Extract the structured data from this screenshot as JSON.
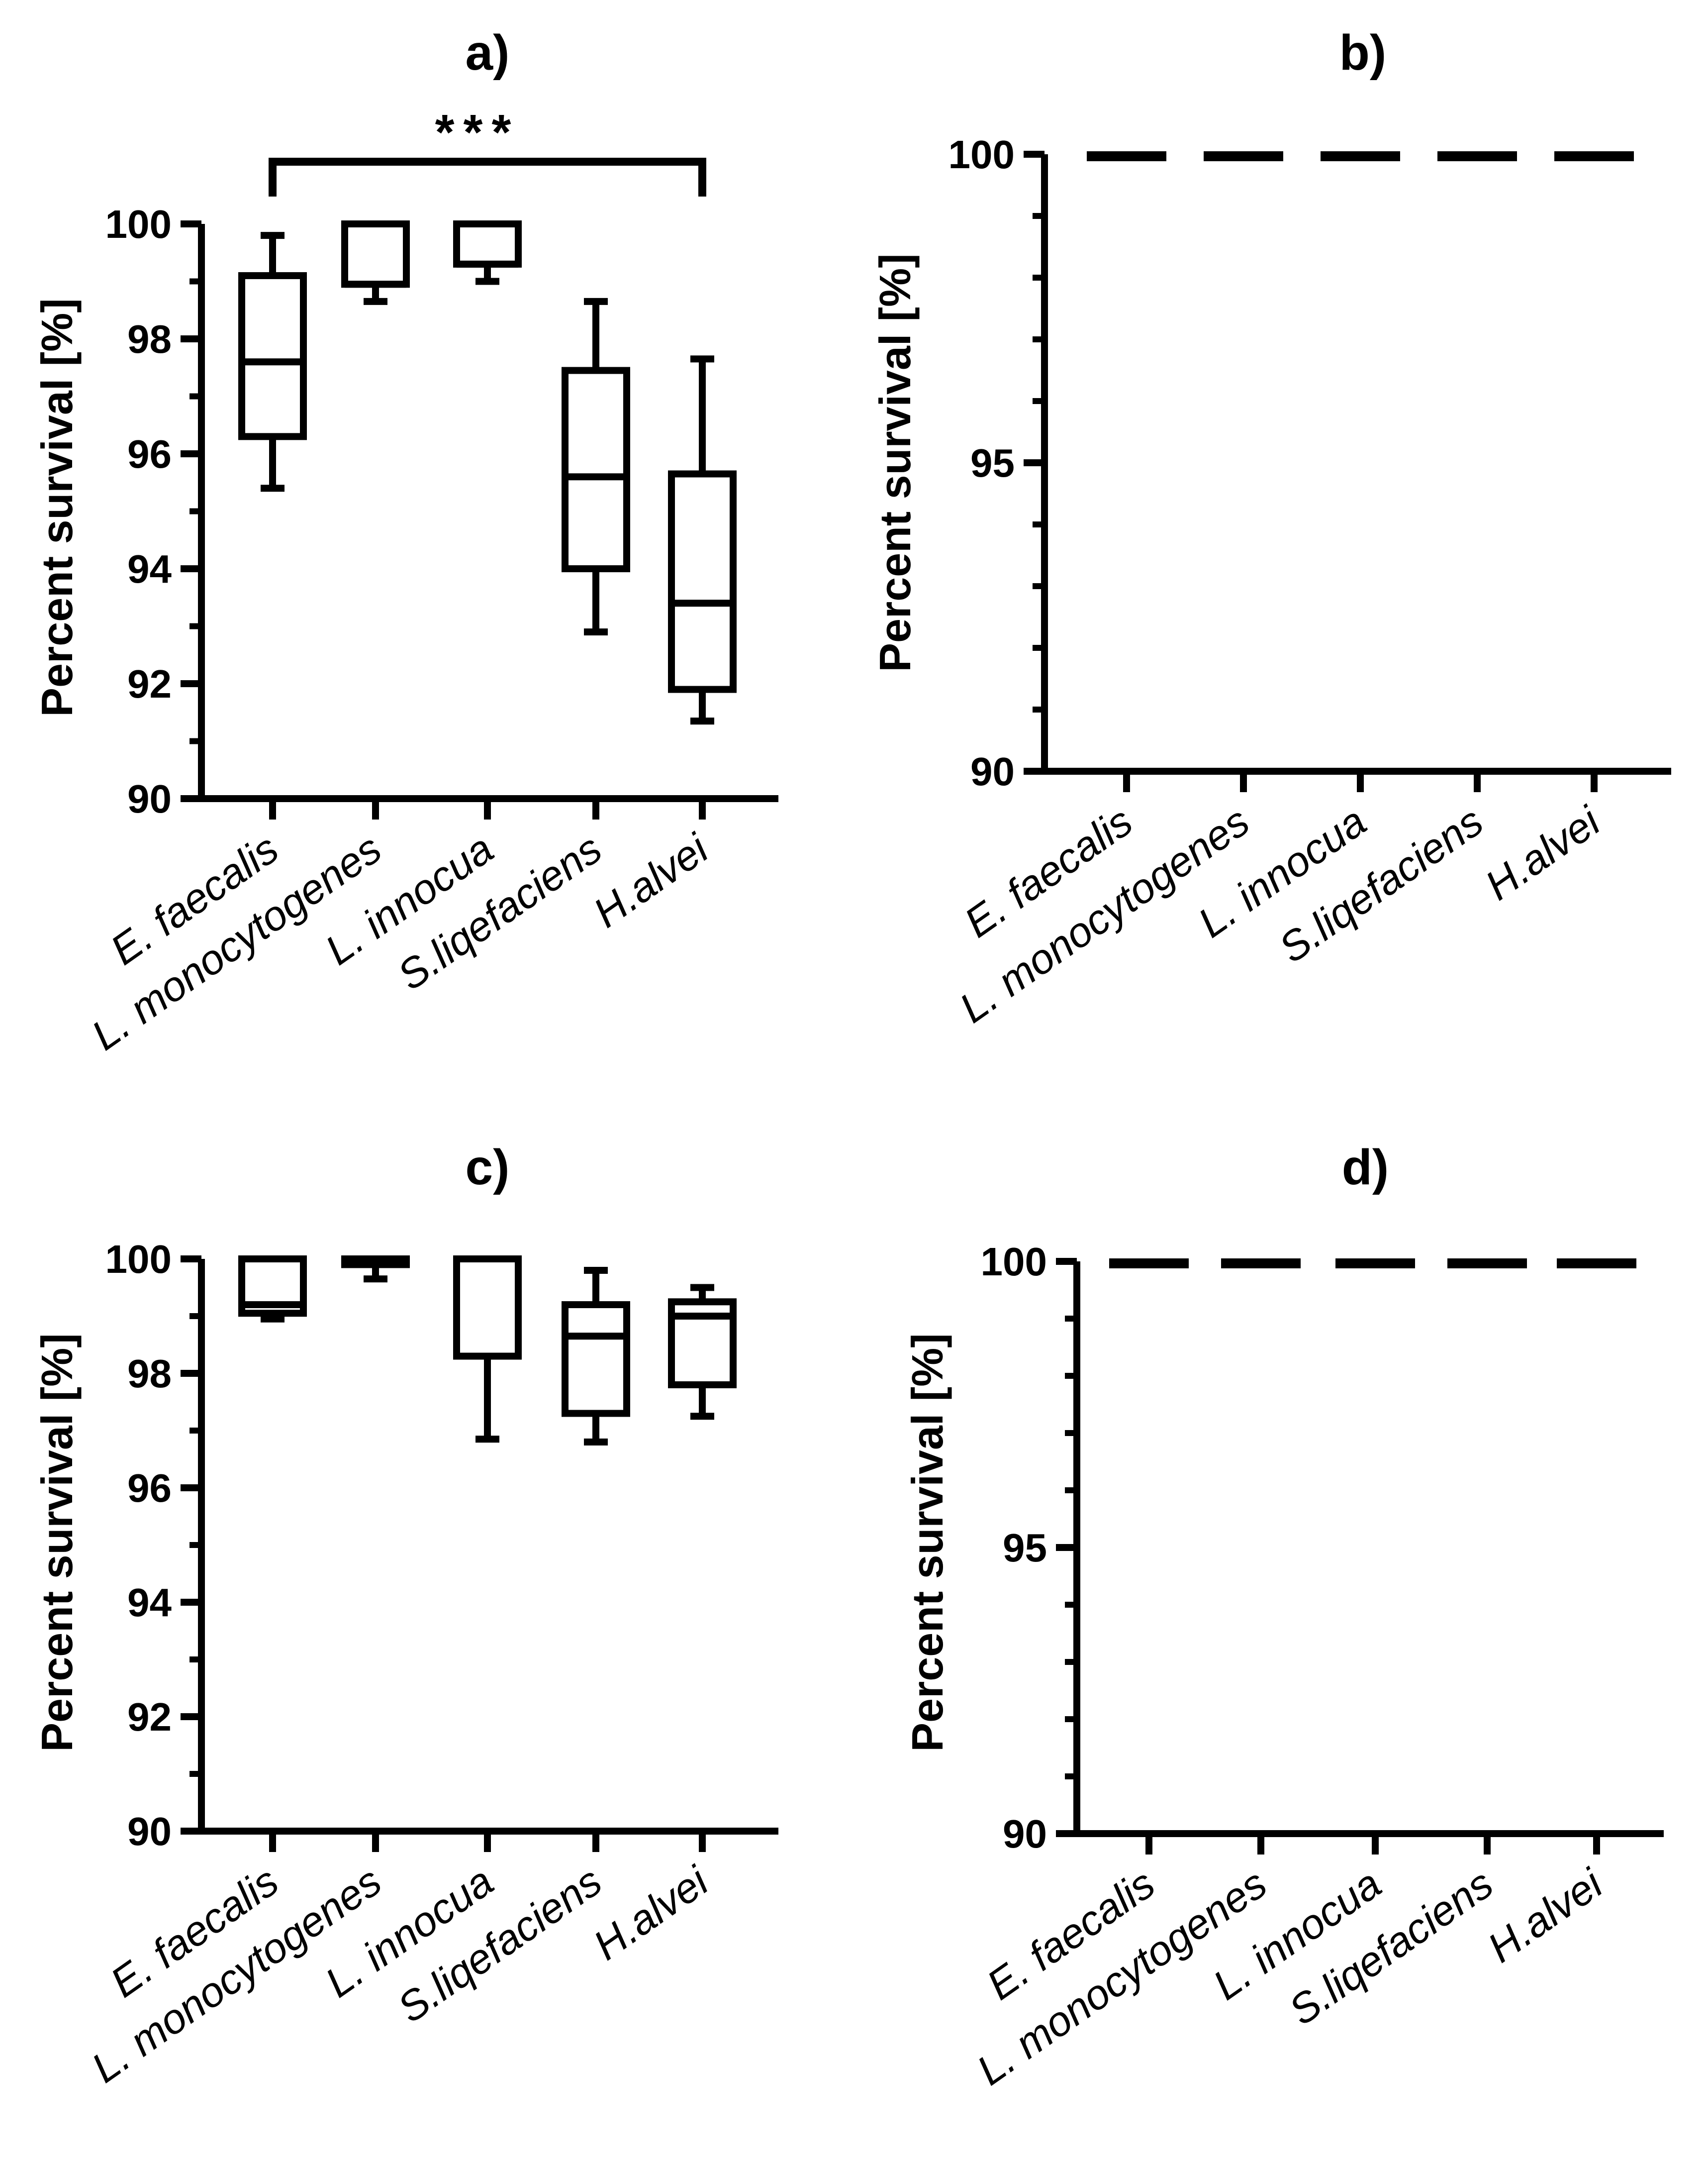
{
  "chart_data": [
    {
      "panel": "a)",
      "type": "box",
      "title": "a)",
      "xlabel": "",
      "ylabel": "Percent survival [%]",
      "ylim": [
        90,
        100
      ],
      "yticks": [
        90,
        92,
        94,
        96,
        98,
        100
      ],
      "categories": [
        "E. faecalis",
        "L. monocytogenes",
        "L. innocua",
        "S.liqefaciens",
        "H.alvei"
      ],
      "boxes": [
        {
          "min": 95.4,
          "q1": 96.3,
          "median": 97.6,
          "q3": 99.1,
          "max": 99.8
        },
        {
          "min": 98.65,
          "q1": 98.95,
          "median": 98.95,
          "q3": 100,
          "max": 100
        },
        {
          "min": 99.0,
          "q1": 99.3,
          "median": 99.3,
          "q3": 100,
          "max": 100
        },
        {
          "min": 92.9,
          "q1": 94.0,
          "median": 95.6,
          "q3": 97.45,
          "max": 98.65
        },
        {
          "min": 91.35,
          "q1": 91.9,
          "median": 93.4,
          "q3": 95.65,
          "max": 97.65
        }
      ],
      "significance": {
        "from": "E. faecalis",
        "to": "H.alvei",
        "label": "***"
      }
    },
    {
      "panel": "b)",
      "type": "box",
      "title": "b)",
      "xlabel": "",
      "ylabel": "Percent survival [%]",
      "ylim": [
        90,
        100
      ],
      "yticks": [
        90,
        95,
        100
      ],
      "categories": [
        "E. faecalis",
        "L. monocytogenes",
        "L. innocua",
        "S.liqefaciens",
        "H.alvei"
      ],
      "boxes": [
        {
          "min": 100,
          "q1": 100,
          "median": 100,
          "q3": 100,
          "max": 100
        },
        {
          "min": 100,
          "q1": 100,
          "median": 100,
          "q3": 100,
          "max": 100
        },
        {
          "min": 100,
          "q1": 100,
          "median": 100,
          "q3": 100,
          "max": 100
        },
        {
          "min": 100,
          "q1": 100,
          "median": 100,
          "q3": 100,
          "max": 100
        },
        {
          "min": 100,
          "q1": 100,
          "median": 100,
          "q3": 100,
          "max": 100
        }
      ]
    },
    {
      "panel": "c)",
      "type": "box",
      "title": "c)",
      "xlabel": "",
      "ylabel": "Percent survival [%]",
      "ylim": [
        90,
        100
      ],
      "yticks": [
        90,
        92,
        94,
        96,
        98,
        100
      ],
      "categories": [
        "E. faecalis",
        "L. monocytogenes",
        "L. innocua",
        "S.liqefaciens",
        "H.alvei"
      ],
      "boxes": [
        {
          "min": 98.95,
          "q1": 99.05,
          "median": 99.2,
          "q3": 100,
          "max": 100
        },
        {
          "min": 99.65,
          "q1": 99.9,
          "median": 99.9,
          "q3": 100,
          "max": 100
        },
        {
          "min": 96.85,
          "q1": 98.3,
          "median": 100,
          "q3": 100,
          "max": 100
        },
        {
          "min": 96.8,
          "q1": 97.3,
          "median": 98.65,
          "q3": 99.2,
          "max": 99.8
        },
        {
          "min": 97.25,
          "q1": 97.8,
          "median": 99.0,
          "q3": 99.25,
          "max": 99.5
        }
      ]
    },
    {
      "panel": "d)",
      "type": "box",
      "title": "d)",
      "xlabel": "",
      "ylabel": "Percent survival [%]",
      "ylim": [
        90,
        100
      ],
      "yticks": [
        90,
        95,
        100
      ],
      "categories": [
        "E. faecalis",
        "L. monocytogenes",
        "L. innocua",
        "S.liqefaciens",
        "H.alvei"
      ],
      "boxes": [
        {
          "min": 100,
          "q1": 100,
          "median": 100,
          "q3": 100,
          "max": 100
        },
        {
          "min": 100,
          "q1": 100,
          "median": 100,
          "q3": 100,
          "max": 100
        },
        {
          "min": 100,
          "q1": 100,
          "median": 100,
          "q3": 100,
          "max": 100
        },
        {
          "min": 100,
          "q1": 100,
          "median": 100,
          "q3": 100,
          "max": 100
        },
        {
          "min": 100,
          "q1": 100,
          "median": 100,
          "q3": 100,
          "max": 100
        }
      ]
    }
  ]
}
